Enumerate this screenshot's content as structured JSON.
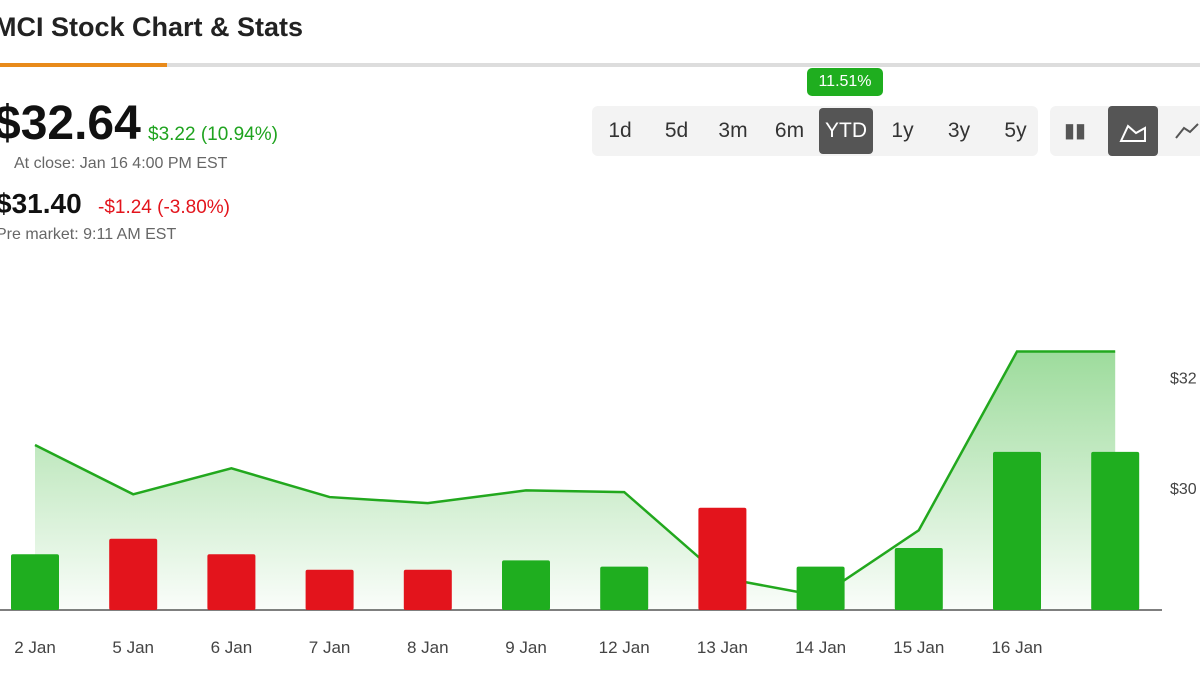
{
  "header": {
    "title": "MCI Stock Chart & Stats"
  },
  "quote": {
    "price": "$32.64",
    "change": "$3.22 (10.94%)",
    "close_note": "At close: Jan 16 4:00 PM EST",
    "pre_price": "$31.40",
    "pre_change": "-$1.24 (-3.80%)",
    "pre_note": "Pre market: 9:11 AM EST"
  },
  "ranges": {
    "items": [
      "1d",
      "5d",
      "3m",
      "6m",
      "YTD",
      "1y",
      "3y",
      "5y"
    ],
    "active": "YTD",
    "badge": "11.51%"
  },
  "chart_data": {
    "type": "line",
    "categories": [
      "2 Jan",
      "5 Jan",
      "6 Jan",
      "7 Jan",
      "8 Jan",
      "9 Jan",
      "12 Jan",
      "13 Jan",
      "14 Jan",
      "15 Jan",
      "16 Jan",
      null
    ],
    "series": [
      {
        "color": "#22a81e",
        "values": [
          30.78,
          29.89,
          30.36,
          29.84,
          29.73,
          29.96,
          29.93,
          28.38,
          28.05,
          29.24,
          32.47,
          32.47
        ]
      }
    ],
    "volume": {
      "values": [
        18,
        23,
        18,
        13,
        13,
        16,
        14,
        33,
        14,
        20,
        51,
        51
      ],
      "colors": [
        "#1fae1f",
        "#e3141c",
        "#e3141c",
        "#e3141c",
        "#e3141c",
        "#1fae1f",
        "#1fae1f",
        "#e3141c",
        "#1fae1f",
        "#1fae1f",
        "#1fae1f",
        "#1fae1f"
      ],
      "vlim": [
        0,
        100
      ]
    },
    "ylim": [
      27.8,
      33.4
    ],
    "yticks": [
      {
        "value": 30,
        "label": "$30"
      },
      {
        "value": 32,
        "label": "$32"
      }
    ]
  }
}
